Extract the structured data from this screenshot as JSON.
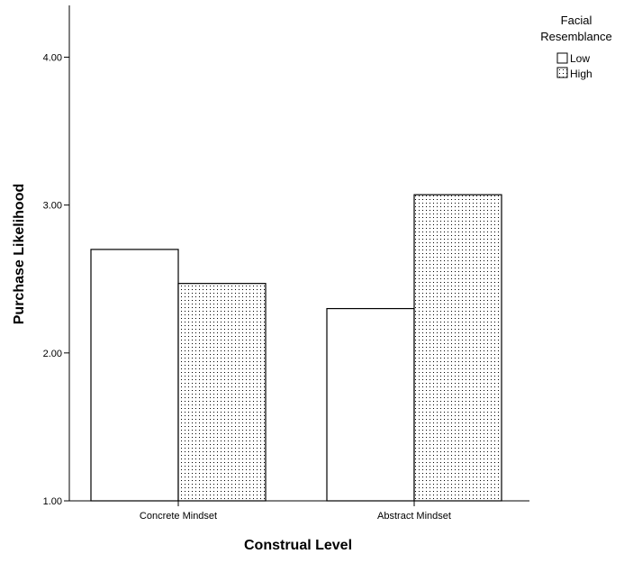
{
  "chart_data": {
    "type": "bar",
    "xlabel": "Construal Level",
    "ylabel": "Purchase Likelihood",
    "categories": [
      "Concrete Mindset",
      "Abstract Mindset"
    ],
    "series": [
      {
        "name": "Low",
        "values": [
          2.7,
          2.3
        ],
        "fill": "#ffffff",
        "pattern": "none"
      },
      {
        "name": "High",
        "values": [
          2.47,
          3.07
        ],
        "fill": "#ffffff",
        "pattern": "dotted"
      }
    ],
    "ylim": [
      1.0,
      4.35
    ],
    "yticks": [
      "1.00",
      "2.00",
      "3.00",
      "4.00"
    ],
    "ytick_values": [
      1,
      2,
      3,
      4
    ],
    "legend": {
      "title_lines": [
        "Facial",
        "Resemblance"
      ],
      "position": "top-right"
    },
    "grid": false,
    "colors": {
      "stroke": "#000000",
      "background": "#ffffff"
    }
  }
}
